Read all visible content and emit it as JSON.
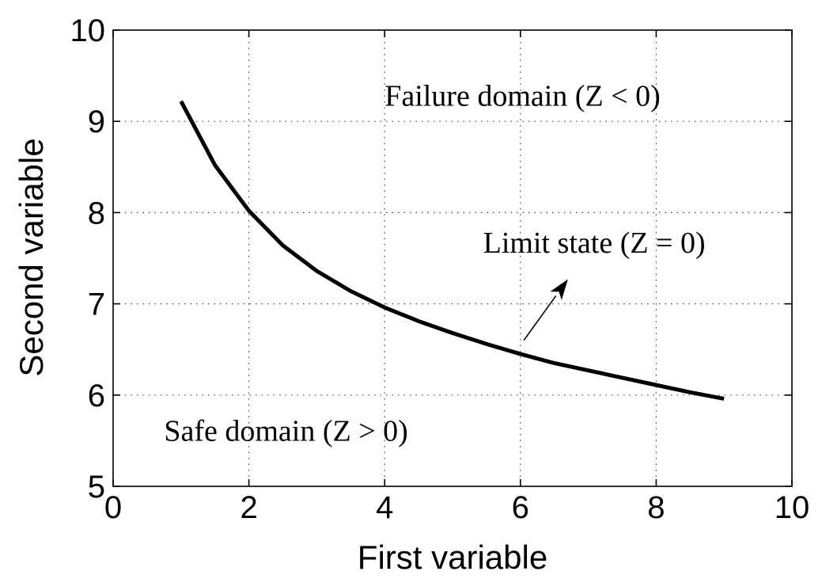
{
  "chart_data": {
    "type": "line",
    "title": "",
    "xlabel": "First variable",
    "ylabel": "Second variable",
    "xlim": [
      0,
      10
    ],
    "ylim": [
      5,
      10
    ],
    "xticks": [
      0,
      2,
      4,
      6,
      8,
      10
    ],
    "yticks": [
      5,
      6,
      7,
      8,
      9,
      10
    ],
    "xtick_labels": [
      "0",
      "2",
      "4",
      "6",
      "8",
      "10"
    ],
    "ytick_labels": [
      "5",
      "6",
      "7",
      "8",
      "9",
      "10"
    ],
    "grid": true,
    "series": [
      {
        "color": "#000000",
        "x": [
          1.0,
          1.5,
          2.0,
          2.5,
          3.0,
          3.5,
          4.0,
          4.5,
          5.0,
          5.5,
          6.0,
          6.5,
          7.0,
          7.5,
          8.0,
          8.5,
          9.0
        ],
        "y": [
          9.22,
          8.52,
          8.02,
          7.64,
          7.36,
          7.14,
          6.96,
          6.81,
          6.68,
          6.56,
          6.45,
          6.35,
          6.27,
          6.19,
          6.11,
          6.03,
          5.96
        ]
      }
    ],
    "annotations": [
      {
        "text": "Failure domain (Z < 0)",
        "x": 4.0,
        "y": 9.17
      },
      {
        "text": "Limit state (Z = 0)",
        "x": 5.45,
        "y": 7.56
      },
      {
        "text": "Safe domain (Z > 0)",
        "x": 0.75,
        "y": 5.5
      }
    ],
    "arrow": {
      "from": [
        6.05,
        6.6
      ],
      "to": [
        6.7,
        7.27
      ]
    }
  }
}
